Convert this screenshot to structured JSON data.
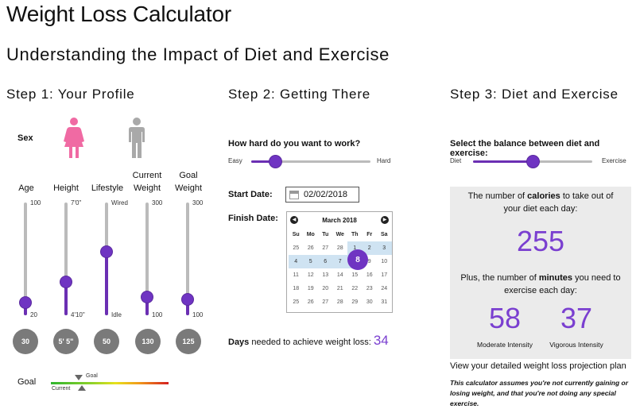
{
  "title": "Weight Loss Calculator",
  "subtitle": "Understanding the Impact of Diet and Exercise",
  "steps": {
    "step1": "Step 1: Your Profile",
    "step2": "Step 2: Getting There",
    "step3": "Step 3: Diet and Exercise"
  },
  "profile": {
    "sex_label": "Sex",
    "sex_selected": "female",
    "colors": {
      "female": "#f06aa3",
      "male": "#a9a9a9",
      "accent": "#6f34c2",
      "bubble": "#7a7a7a"
    },
    "sliders": [
      {
        "id": "age",
        "label": "Age",
        "max_label": "100",
        "min_label": "20",
        "value": "30",
        "fraction": 0.05
      },
      {
        "id": "height",
        "label": "Height",
        "max_label": "7'0\"",
        "min_label": "4'10\"",
        "value": "5' 5\"",
        "fraction": 0.23
      },
      {
        "id": "lifestyle",
        "label": "Lifestyle",
        "max_label": "Wired",
        "min_label": "Idle",
        "value": "50",
        "fraction": 0.5
      },
      {
        "id": "current-weight",
        "label_line1": "Current",
        "label_line2": "Weight",
        "max_label": "300",
        "min_label": "100",
        "value": "130",
        "fraction": 0.1
      },
      {
        "id": "goal-weight",
        "label_line1": "Goal",
        "label_line2": "Weight",
        "max_label": "300",
        "min_label": "100",
        "value": "125",
        "fraction": 0.08
      }
    ],
    "goal_bar": {
      "label": "Goal",
      "goal_marker": "Goal",
      "current_marker": "Current"
    }
  },
  "getting_there": {
    "effort_question": "How hard do you want to work?",
    "effort_min": "Easy",
    "effort_max": "Hard",
    "effort_fraction": 0.2,
    "start_label": "Start Date:",
    "start_date": "02/02/2018",
    "finish_label": "Finish Date:",
    "calendar": {
      "month": "March 2018",
      "prev": "◀",
      "next": "▶",
      "dow": [
        "Su",
        "Mo",
        "Tu",
        "We",
        "Th",
        "Fr",
        "Sa"
      ],
      "weeks": [
        [
          "25",
          "26",
          "27",
          "28",
          "1",
          "2",
          "3"
        ],
        [
          "4",
          "5",
          "6",
          "7",
          "8",
          "9",
          "10"
        ],
        [
          "11",
          "12",
          "13",
          "14",
          "15",
          "16",
          "17"
        ],
        [
          "18",
          "19",
          "20",
          "21",
          "22",
          "23",
          "24"
        ],
        [
          "25",
          "26",
          "27",
          "28",
          "29",
          "30",
          "31"
        ]
      ],
      "selected_day": "8"
    },
    "days_bold": "Days",
    "days_text": " needed to achieve weight loss: ",
    "days_value": "34"
  },
  "diet_exercise": {
    "balance_question": "Select the balance between diet and exercise:",
    "balance_min": "Diet",
    "balance_max": "Exercise",
    "balance_fraction": 0.5,
    "calories_text_pre": "The number of ",
    "calories_text_bold": "calories",
    "calories_text_post": " to take out of",
    "calories_text_line2": "your diet each day:",
    "calories_value": "255",
    "minutes_text_pre": "Plus, the number of ",
    "minutes_text_bold": "minutes",
    "minutes_text_post": " you need to",
    "minutes_text_line2": "exercise each day:",
    "moderate_value": "58",
    "moderate_label": "Moderate Intensity",
    "vigorous_value": "37",
    "vigorous_label": "Vigorous Intensity",
    "plan_link": "View your detailed weight loss projection plan",
    "note": "This calculator assumes you're not currently gaining or losing weight, and that you're not doing any special exercise."
  }
}
